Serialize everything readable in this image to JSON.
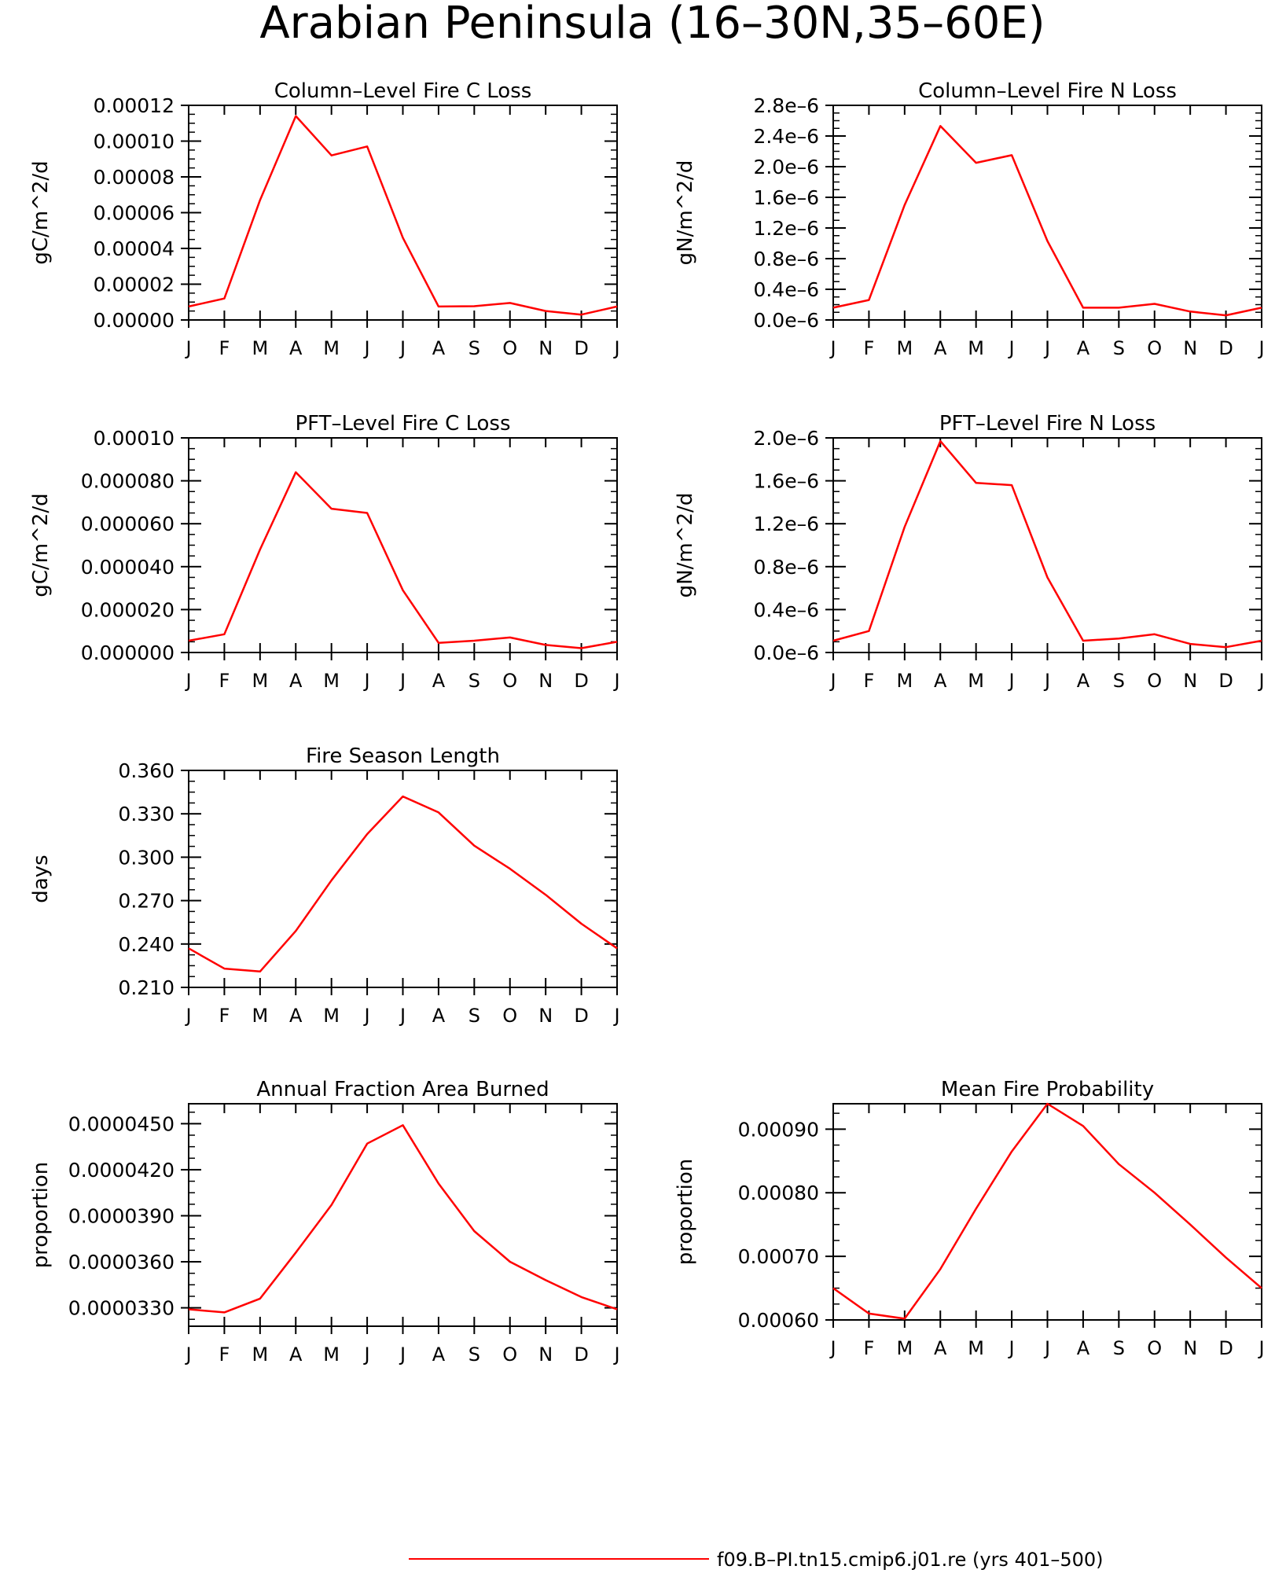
{
  "figure": {
    "title": "Arabian Peninsula (16–30N,35–60E)"
  },
  "legend": {
    "label": "f09.B–PI.tn15.cmip6.j01.re (yrs 401–500)",
    "color": "#ff0000"
  },
  "colors": {
    "line": "#ff0000",
    "axis": "#000000"
  },
  "chart_data": [
    {
      "type": "line",
      "title": "Column–Level Fire C Loss",
      "ylabel": "gC/m^2/d",
      "categories": [
        "J",
        "F",
        "M",
        "A",
        "M",
        "J",
        "J",
        "A",
        "S",
        "O",
        "N",
        "D",
        "J"
      ],
      "values": [
        7.5e-06,
        1.2e-05,
        6.7e-05,
        0.000114,
        9.2e-05,
        9.7e-05,
        4.6e-05,
        7.5e-06,
        7.7e-06,
        9.5e-06,
        5e-06,
        3e-06,
        7.5e-06
      ],
      "ylim": [
        0,
        0.00012
      ],
      "yticks": [
        0,
        2e-05,
        4e-05,
        6e-05,
        8e-05,
        0.0001,
        0.00012
      ],
      "yticklabels": [
        "0.00000",
        "0.00002",
        "0.00004",
        "0.00006",
        "0.00008",
        "0.00010",
        "0.00012"
      ]
    },
    {
      "type": "line",
      "title": "Column–Level Fire N Loss",
      "ylabel": "gN/m^2/d",
      "categories": [
        "J",
        "F",
        "M",
        "A",
        "M",
        "J",
        "J",
        "A",
        "S",
        "O",
        "N",
        "D",
        "J"
      ],
      "values": [
        1.6e-07,
        2.6e-07,
        1.5e-06,
        2.53e-06,
        2.05e-06,
        2.15e-06,
        1.03e-06,
        1.6e-07,
        1.6e-07,
        2.1e-07,
        1.1e-07,
        6e-08,
        1.6e-07
      ],
      "ylim": [
        0,
        2.8e-06
      ],
      "yticks": [
        0,
        4e-07,
        8e-07,
        1.2e-06,
        1.6e-06,
        2e-06,
        2.4e-06,
        2.8e-06
      ],
      "yticklabels": [
        "0.0e–6",
        "0.4e–6",
        "0.8e–6",
        "1.2e–6",
        "1.6e–6",
        "2.0e–6",
        "2.4e–6",
        "2.8e–6"
      ]
    },
    {
      "type": "line",
      "title": "PFT–Level Fire C Loss",
      "ylabel": "gC/m^2/d",
      "categories": [
        "J",
        "F",
        "M",
        "A",
        "M",
        "J",
        "J",
        "A",
        "S",
        "O",
        "N",
        "D",
        "J"
      ],
      "values": [
        5.5e-06,
        8.5e-06,
        4.8e-05,
        8.4e-05,
        6.7e-05,
        6.5e-05,
        2.9e-05,
        4.5e-06,
        5.5e-06,
        7e-06,
        3.5e-06,
        2e-06,
        5e-06
      ],
      "ylim": [
        0,
        0.0001
      ],
      "yticks": [
        0,
        2e-05,
        4e-05,
        6e-05,
        8e-05,
        0.0001
      ],
      "yticklabels": [
        "0.000000",
        "0.000020",
        "0.000040",
        "0.000060",
        "0.000080",
        "0.00010"
      ]
    },
    {
      "type": "line",
      "title": "PFT–Level Fire N Loss",
      "ylabel": "gN/m^2/d",
      "categories": [
        "J",
        "F",
        "M",
        "A",
        "M",
        "J",
        "J",
        "A",
        "S",
        "O",
        "N",
        "D",
        "J"
      ],
      "values": [
        1.1e-07,
        2e-07,
        1.17e-06,
        1.97e-06,
        1.58e-06,
        1.56e-06,
        7e-07,
        1.1e-07,
        1.3e-07,
        1.7e-07,
        8e-08,
        5e-08,
        1.1e-07
      ],
      "ylim": [
        0,
        2e-06
      ],
      "yticks": [
        0,
        4e-07,
        8e-07,
        1.2e-06,
        1.6e-06,
        2e-06
      ],
      "yticklabels": [
        "0.0e–6",
        "0.4e–6",
        "0.8e–6",
        "1.2e–6",
        "1.6e–6",
        "2.0e–6"
      ]
    },
    {
      "type": "line",
      "title": "Fire Season Length",
      "ylabel": "days",
      "categories": [
        "J",
        "F",
        "M",
        "A",
        "M",
        "J",
        "J",
        "A",
        "S",
        "O",
        "N",
        "D",
        "J"
      ],
      "values": [
        0.237,
        0.223,
        0.221,
        0.249,
        0.284,
        0.316,
        0.342,
        0.331,
        0.308,
        0.292,
        0.274,
        0.254,
        0.237
      ],
      "ylim": [
        0.21,
        0.36
      ],
      "yticks": [
        0.21,
        0.24,
        0.27,
        0.3,
        0.33,
        0.36
      ],
      "yticklabels": [
        "0.210",
        "0.240",
        "0.270",
        "0.300",
        "0.330",
        "0.360"
      ]
    },
    {
      "type": "line",
      "title": "Annual Fraction Area Burned",
      "ylabel": "proportion",
      "categories": [
        "J",
        "F",
        "M",
        "A",
        "M",
        "J",
        "J",
        "A",
        "S",
        "O",
        "N",
        "D",
        "J"
      ],
      "values": [
        3.29e-05,
        3.27e-05,
        3.36e-05,
        3.66e-05,
        3.97e-05,
        4.37e-05,
        4.49e-05,
        4.11e-05,
        3.8e-05,
        3.6e-05,
        3.48e-05,
        3.37e-05,
        3.29e-05
      ],
      "ylim": [
        3.18e-05,
        4.63e-05
      ],
      "yticks": [
        3.3e-05,
        3.6e-05,
        3.9e-05,
        4.2e-05,
        4.5e-05
      ],
      "yticklabels": [
        "0.0000330",
        "0.0000360",
        "0.0000390",
        "0.0000420",
        "0.0000450"
      ]
    },
    {
      "type": "line",
      "title": "Mean Fire Probability",
      "ylabel": "proportion",
      "categories": [
        "J",
        "F",
        "M",
        "A",
        "M",
        "J",
        "J",
        "A",
        "S",
        "O",
        "N",
        "D",
        "J"
      ],
      "values": [
        0.00065,
        0.00061,
        0.000602,
        0.00068,
        0.000775,
        0.000865,
        0.00094,
        0.000905,
        0.000845,
        0.0008,
        0.00075,
        0.000698,
        0.00065
      ],
      "ylim": [
        0.0006,
        0.00094
      ],
      "yticks": [
        0.0006,
        0.0007,
        0.0008,
        0.0009
      ],
      "yticklabels": [
        "0.00060",
        "0.00070",
        "0.00080",
        "0.00090"
      ]
    }
  ]
}
